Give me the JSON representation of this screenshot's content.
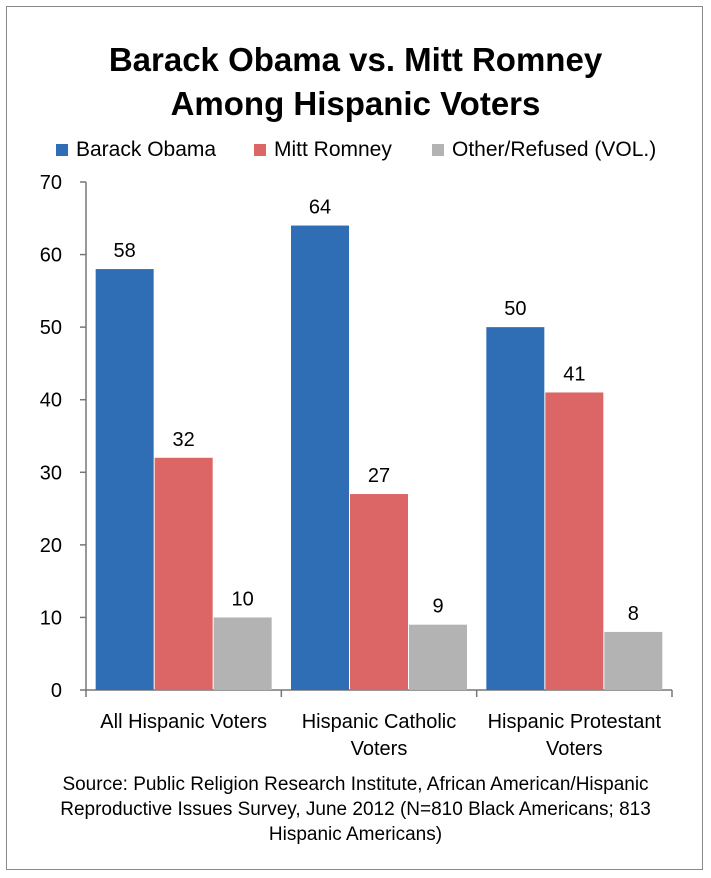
{
  "chart_data": {
    "type": "bar",
    "title_line1": "Barack Obama vs. Mitt Romney",
    "title_line2": "Among Hispanic Voters",
    "categories": [
      [
        "All Hispanic Voters"
      ],
      [
        "Hispanic Catholic",
        "Voters"
      ],
      [
        "Hispanic Protestant",
        "Voters"
      ]
    ],
    "series": [
      {
        "name": "Barack Obama",
        "color": "#2f6db5",
        "values": [
          58,
          64,
          50
        ]
      },
      {
        "name": "Mitt Romney",
        "color": "#dc6565",
        "values": [
          32,
          27,
          41
        ]
      },
      {
        "name": "Other/Refused (VOL.)",
        "color": "#b3b3b3",
        "values": [
          10,
          9,
          8
        ]
      }
    ],
    "ylim": [
      0,
      70
    ],
    "yticks": [
      0,
      10,
      20,
      30,
      40,
      50,
      60,
      70
    ],
    "legend_position": "top",
    "grid": false,
    "source_lines": [
      "Source: Public Religion Research Institute, African American/Hispanic",
      "Reproductive Issues Survey, June 2012 (N=810 Black Americans; 813",
      "Hispanic Americans)"
    ]
  }
}
